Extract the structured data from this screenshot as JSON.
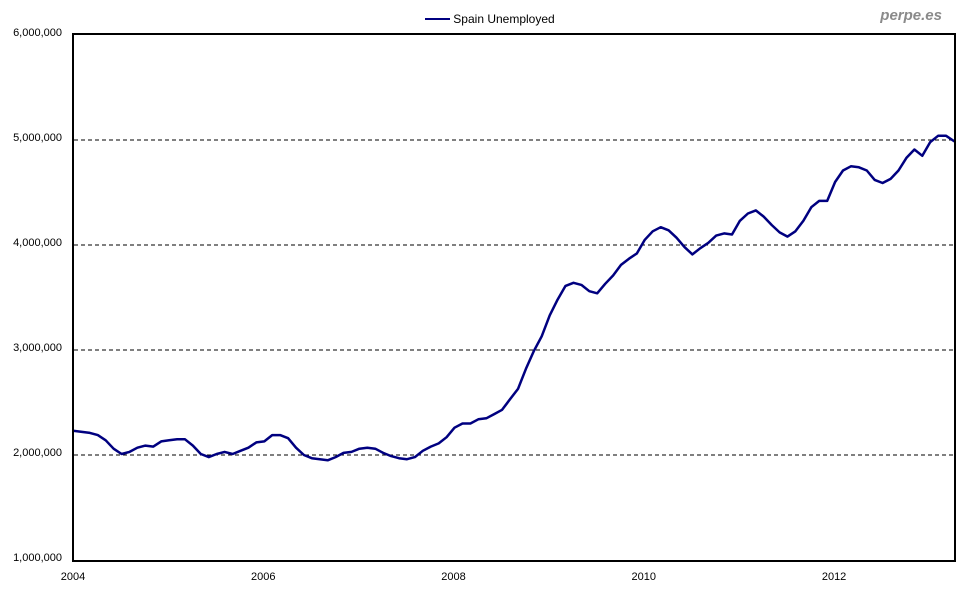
{
  "watermark": {
    "text": "perpe.es",
    "color": "#8a8a8a"
  },
  "legend": {
    "label": "Spain Unemployed",
    "line_color": "#000080",
    "position": "top-center"
  },
  "chart_data": {
    "type": "line",
    "title": "",
    "xlabel": "",
    "ylabel": "",
    "series_name": "Spain Unemployed",
    "line_color": "#000080",
    "x_frequency": "monthly",
    "x_start": "2004-01",
    "x_end": "2013-04",
    "ylim": [
      1000000,
      6000000
    ],
    "grid": "horizontal dashed",
    "legend_position": "top-center",
    "y_ticks": [
      {
        "label": "6,000,000",
        "value": 6000000
      },
      {
        "label": "5,000,000",
        "value": 5000000
      },
      {
        "label": "4,000,000",
        "value": 4000000
      },
      {
        "label": "3,000,000",
        "value": 3000000
      },
      {
        "label": "2,000,000",
        "value": 2000000
      },
      {
        "label": "1,000,000",
        "value": 1000000
      }
    ],
    "y_gridlines": [
      5000000,
      4000000,
      3000000,
      2000000
    ],
    "x_ticks": [
      {
        "label": "2004",
        "month_index": 0
      },
      {
        "label": "2006",
        "month_index": 24
      },
      {
        "label": "2008",
        "month_index": 48
      },
      {
        "label": "2010",
        "month_index": 72
      },
      {
        "label": "2012",
        "month_index": 96
      }
    ],
    "values": [
      2230000,
      2220000,
      2210000,
      2190000,
      2140000,
      2060000,
      2010000,
      2030000,
      2070000,
      2090000,
      2080000,
      2130000,
      2140000,
      2150000,
      2150000,
      2090000,
      2010000,
      1980000,
      2010000,
      2030000,
      2010000,
      2040000,
      2070000,
      2120000,
      2130000,
      2190000,
      2190000,
      2160000,
      2070000,
      2000000,
      1970000,
      1960000,
      1950000,
      1980000,
      2020000,
      2030000,
      2060000,
      2070000,
      2060000,
      2020000,
      1990000,
      1970000,
      1960000,
      1980000,
      2040000,
      2080000,
      2110000,
      2170000,
      2260000,
      2300000,
      2300000,
      2340000,
      2350000,
      2390000,
      2430000,
      2530000,
      2630000,
      2820000,
      2990000,
      3130000,
      3330000,
      3480000,
      3610000,
      3640000,
      3620000,
      3560000,
      3540000,
      3630000,
      3710000,
      3810000,
      3870000,
      3920000,
      4050000,
      4130000,
      4170000,
      4140000,
      4070000,
      3980000,
      3910000,
      3970000,
      4020000,
      4090000,
      4110000,
      4100000,
      4230000,
      4300000,
      4330000,
      4270000,
      4190000,
      4120000,
      4080000,
      4130000,
      4230000,
      4360000,
      4420000,
      4420000,
      4600000,
      4710000,
      4750000,
      4740000,
      4710000,
      4620000,
      4590000,
      4630000,
      4710000,
      4830000,
      4910000,
      4850000,
      4980000,
      5040000,
      5040000,
      4990000
    ]
  }
}
